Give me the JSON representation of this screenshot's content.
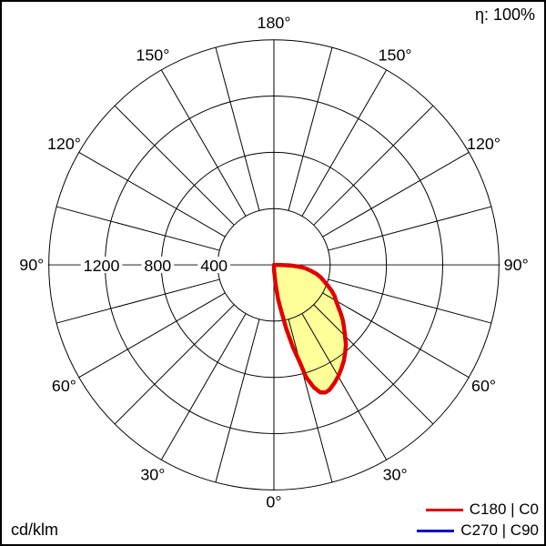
{
  "header": {
    "efficiency_label": "η: 100%"
  },
  "footer": {
    "unit_label": "cd/klm"
  },
  "legend": {
    "entries": [
      {
        "label": "C180 | C0",
        "color": "#e00000"
      },
      {
        "label": "C270 | C90",
        "color": "#0000cc"
      }
    ]
  },
  "chart_data": {
    "type": "polar",
    "subtype": "photometric-intensity-distribution",
    "unit": "cd/klm",
    "efficiency_percent": 100,
    "orientation": "0° at bottom (nadir), 180° at top, gamma labels mirrored on both sides",
    "radial_axis": {
      "min": 0,
      "max": 1600,
      "step": 400,
      "gridline_circles": [
        400,
        800,
        1200,
        1600
      ],
      "labeled_ticks": [
        "1200",
        "800",
        "400"
      ],
      "labeled_tick_values": [
        1200,
        800,
        400
      ]
    },
    "angular_axis": {
      "spoke_step_deg": 15,
      "label_step_deg": 30,
      "labels": [
        {
          "deg": 0,
          "label": "0°"
        },
        {
          "deg": 30,
          "label": "30°"
        },
        {
          "deg": 60,
          "label": "60°"
        },
        {
          "deg": 90,
          "label": "90°"
        },
        {
          "deg": 120,
          "label": "120°"
        },
        {
          "deg": 150,
          "label": "150°"
        },
        {
          "deg": 180,
          "label": "180°"
        }
      ]
    },
    "series": [
      {
        "name": "C180 | C0",
        "stroke": "#e00000",
        "fill": "#ffff99",
        "visible": true,
        "note": "intensity ~0 over C180 (left) half; single lobe on C0 (right) half, peak ~975 cd/klm at gamma ~22°",
        "points_gamma_value": [
          [
            0,
            0
          ],
          [
            2,
            40
          ],
          [
            5,
            140
          ],
          [
            7,
            245
          ],
          [
            9,
            330
          ],
          [
            11,
            465
          ],
          [
            13,
            600
          ],
          [
            15,
            725
          ],
          [
            16,
            830
          ],
          [
            18,
            915
          ],
          [
            20,
            965
          ],
          [
            22,
            978
          ],
          [
            24,
            972
          ],
          [
            27,
            945
          ],
          [
            30,
            915
          ],
          [
            33,
            880
          ],
          [
            36,
            845
          ],
          [
            39,
            805
          ],
          [
            42,
            765
          ],
          [
            45,
            715
          ],
          [
            48,
            672
          ],
          [
            51,
            632
          ],
          [
            54,
            588
          ],
          [
            57,
            545
          ],
          [
            60,
            510
          ],
          [
            63,
            483
          ],
          [
            66,
            448
          ],
          [
            69,
            410
          ],
          [
            72,
            375
          ],
          [
            75,
            345
          ],
          [
            78,
            310
          ],
          [
            81,
            265
          ],
          [
            84,
            225
          ],
          [
            86,
            180
          ],
          [
            88,
            120
          ],
          [
            89,
            60
          ],
          [
            90,
            0
          ]
        ]
      },
      {
        "name": "C270 | C90",
        "stroke": "#0000cc",
        "visible": false,
        "points_gamma_value": []
      }
    ]
  }
}
